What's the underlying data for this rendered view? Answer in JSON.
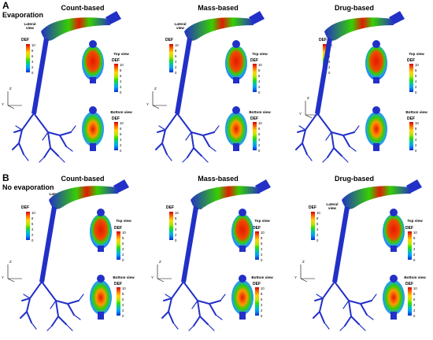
{
  "sections": [
    {
      "letter": "A",
      "condition": "Evaporation"
    },
    {
      "letter": "B",
      "condition": "No evaporation"
    }
  ],
  "columns": {
    "A": [
      "Count-based",
      "Mass-based",
      "Drug-based"
    ],
    "B": [
      "Count-based",
      "Mass-based",
      "Drug-based"
    ]
  },
  "labels": {
    "lateral": "Lateral view",
    "top": "Top view",
    "bottom": "Bottom view",
    "def": "DEF"
  },
  "scale_ticks": [
    "10",
    "8",
    "6",
    "4",
    "2",
    "0"
  ],
  "axes": {
    "y": "Y",
    "z": "Z"
  },
  "colors": {
    "airway": "#2230c8",
    "high": "#e41a00",
    "mid": "#36d000",
    "low": "#1e9cff"
  }
}
